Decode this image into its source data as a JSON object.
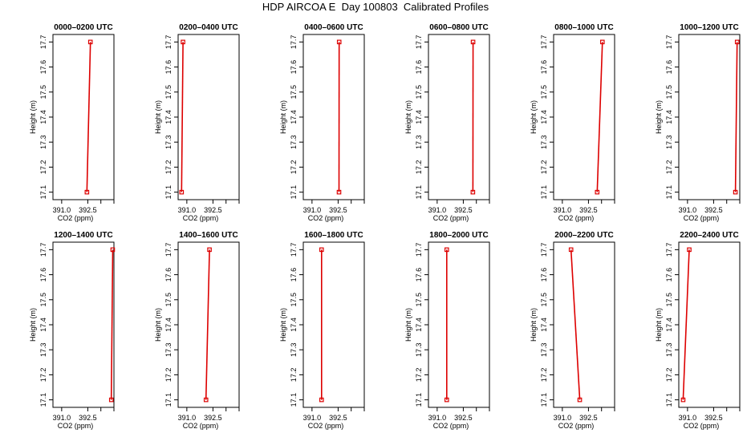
{
  "figure": {
    "title": "HDP AIRCOA E  Day 100803  Calibrated Profiles",
    "colors": {
      "series": "#dd0000",
      "frame": "#000000",
      "background": "#ffffff"
    }
  },
  "chart_data": [
    {
      "type": "line",
      "title": "0000–0200 UTC",
      "xlabel": "CO2 (ppm)",
      "ylabel": "Height (m)",
      "xlim": [
        390.5,
        394.0
      ],
      "ylim": [
        17.07,
        17.73
      ],
      "xticks": [
        "391.0",
        "392.5"
      ],
      "yticks": [
        "17.1",
        "17.2",
        "17.3",
        "17.4",
        "17.5",
        "17.6",
        "17.7"
      ],
      "series": [
        {
          "x": [
            392.45,
            392.65
          ],
          "y": [
            17.1,
            17.7
          ]
        }
      ]
    },
    {
      "type": "line",
      "title": "0200–0400 UTC",
      "xlabel": "CO2 (ppm)",
      "ylabel": "Height (m)",
      "xlim": [
        390.5,
        394.0
      ],
      "ylim": [
        17.07,
        17.73
      ],
      "xticks": [
        "391.0",
        "392.5"
      ],
      "yticks": [
        "17.1",
        "17.2",
        "17.3",
        "17.4",
        "17.5",
        "17.6",
        "17.7"
      ],
      "series": [
        {
          "x": [
            390.7,
            390.78
          ],
          "y": [
            17.1,
            17.7
          ]
        }
      ]
    },
    {
      "type": "line",
      "title": "0400–0600 UTC",
      "xlabel": "CO2 (ppm)",
      "ylabel": "Height (m)",
      "xlim": [
        390.5,
        394.0
      ],
      "ylim": [
        17.07,
        17.73
      ],
      "xticks": [
        "391.0",
        "392.5"
      ],
      "yticks": [
        "17.1",
        "17.2",
        "17.3",
        "17.4",
        "17.5",
        "17.6",
        "17.7"
      ],
      "series": [
        {
          "x": [
            392.55,
            392.56
          ],
          "y": [
            17.1,
            17.7
          ]
        }
      ]
    },
    {
      "type": "line",
      "title": "0600–0800 UTC",
      "xlabel": "CO2 (ppm)",
      "ylabel": "Height (m)",
      "xlim": [
        390.5,
        394.0
      ],
      "ylim": [
        17.07,
        17.73
      ],
      "xticks": [
        "391.0",
        "392.5"
      ],
      "yticks": [
        "17.1",
        "17.2",
        "17.3",
        "17.4",
        "17.5",
        "17.6",
        "17.7"
      ],
      "series": [
        {
          "x": [
            393.05,
            393.06
          ],
          "y": [
            17.1,
            17.7
          ]
        }
      ]
    },
    {
      "type": "line",
      "title": "0800–1000 UTC",
      "xlabel": "CO2 (ppm)",
      "ylabel": "Height (m)",
      "xlim": [
        390.5,
        394.0
      ],
      "ylim": [
        17.07,
        17.73
      ],
      "xticks": [
        "391.0",
        "392.5"
      ],
      "yticks": [
        "17.1",
        "17.2",
        "17.3",
        "17.4",
        "17.5",
        "17.6",
        "17.7"
      ],
      "series": [
        {
          "x": [
            393.0,
            393.3
          ],
          "y": [
            17.1,
            17.7
          ]
        }
      ]
    },
    {
      "type": "line",
      "title": "1000–1200 UTC",
      "xlabel": "CO2 (ppm)",
      "ylabel": "Height (m)",
      "xlim": [
        390.5,
        394.0
      ],
      "ylim": [
        17.07,
        17.73
      ],
      "xticks": [
        "391.0",
        "392.5"
      ],
      "yticks": [
        "17.1",
        "17.2",
        "17.3",
        "17.4",
        "17.5",
        "17.6",
        "17.7"
      ],
      "series": [
        {
          "x": [
            393.75,
            393.85
          ],
          "y": [
            17.1,
            17.7
          ]
        }
      ]
    },
    {
      "type": "line",
      "title": "1200–1400 UTC",
      "xlabel": "CO2 (ppm)",
      "ylabel": "Height (m)",
      "xlim": [
        390.5,
        394.0
      ],
      "ylim": [
        17.07,
        17.73
      ],
      "xticks": [
        "391.0",
        "392.5"
      ],
      "yticks": [
        "17.1",
        "17.2",
        "17.3",
        "17.4",
        "17.5",
        "17.6",
        "17.7"
      ],
      "series": [
        {
          "x": [
            393.85,
            393.93
          ],
          "y": [
            17.1,
            17.7
          ]
        }
      ]
    },
    {
      "type": "line",
      "title": "1400–1600 UTC",
      "xlabel": "CO2 (ppm)",
      "ylabel": "Height (m)",
      "xlim": [
        390.5,
        394.0
      ],
      "ylim": [
        17.07,
        17.73
      ],
      "xticks": [
        "391.0",
        "392.5"
      ],
      "yticks": [
        "17.1",
        "17.2",
        "17.3",
        "17.4",
        "17.5",
        "17.6",
        "17.7"
      ],
      "series": [
        {
          "x": [
            392.1,
            392.3
          ],
          "y": [
            17.1,
            17.7
          ]
        }
      ]
    },
    {
      "type": "line",
      "title": "1600–1800 UTC",
      "xlabel": "CO2 (ppm)",
      "ylabel": "Height (m)",
      "xlim": [
        390.5,
        394.0
      ],
      "ylim": [
        17.07,
        17.73
      ],
      "xticks": [
        "391.0",
        "392.5"
      ],
      "yticks": [
        "17.1",
        "17.2",
        "17.3",
        "17.4",
        "17.5",
        "17.6",
        "17.7"
      ],
      "series": [
        {
          "x": [
            391.55,
            391.55
          ],
          "y": [
            17.1,
            17.7
          ]
        }
      ]
    },
    {
      "type": "line",
      "title": "1800–2000 UTC",
      "xlabel": "CO2 (ppm)",
      "ylabel": "Height (m)",
      "xlim": [
        390.5,
        394.0
      ],
      "ylim": [
        17.07,
        17.73
      ],
      "xticks": [
        "391.0",
        "392.5"
      ],
      "yticks": [
        "17.1",
        "17.2",
        "17.3",
        "17.4",
        "17.5",
        "17.6",
        "17.7"
      ],
      "series": [
        {
          "x": [
            391.55,
            391.55
          ],
          "y": [
            17.1,
            17.7
          ]
        }
      ]
    },
    {
      "type": "line",
      "title": "2000–2200 UTC",
      "xlabel": "CO2 (ppm)",
      "ylabel": "Height (m)",
      "xlim": [
        390.5,
        394.0
      ],
      "ylim": [
        17.07,
        17.73
      ],
      "xticks": [
        "391.0",
        "392.5"
      ],
      "yticks": [
        "17.1",
        "17.2",
        "17.3",
        "17.4",
        "17.5",
        "17.6",
        "17.7"
      ],
      "series": [
        {
          "x": [
            392.0,
            391.5
          ],
          "y": [
            17.1,
            17.7
          ]
        }
      ]
    },
    {
      "type": "line",
      "title": "2200–2400 UTC",
      "xlabel": "CO2 (ppm)",
      "ylabel": "Height (m)",
      "xlim": [
        390.5,
        394.0
      ],
      "ylim": [
        17.07,
        17.73
      ],
      "xticks": [
        "391.0",
        "392.5"
      ],
      "yticks": [
        "17.1",
        "17.2",
        "17.3",
        "17.4",
        "17.5",
        "17.6",
        "17.7"
      ],
      "series": [
        {
          "x": [
            390.75,
            391.1
          ],
          "y": [
            17.1,
            17.7
          ]
        }
      ]
    }
  ]
}
